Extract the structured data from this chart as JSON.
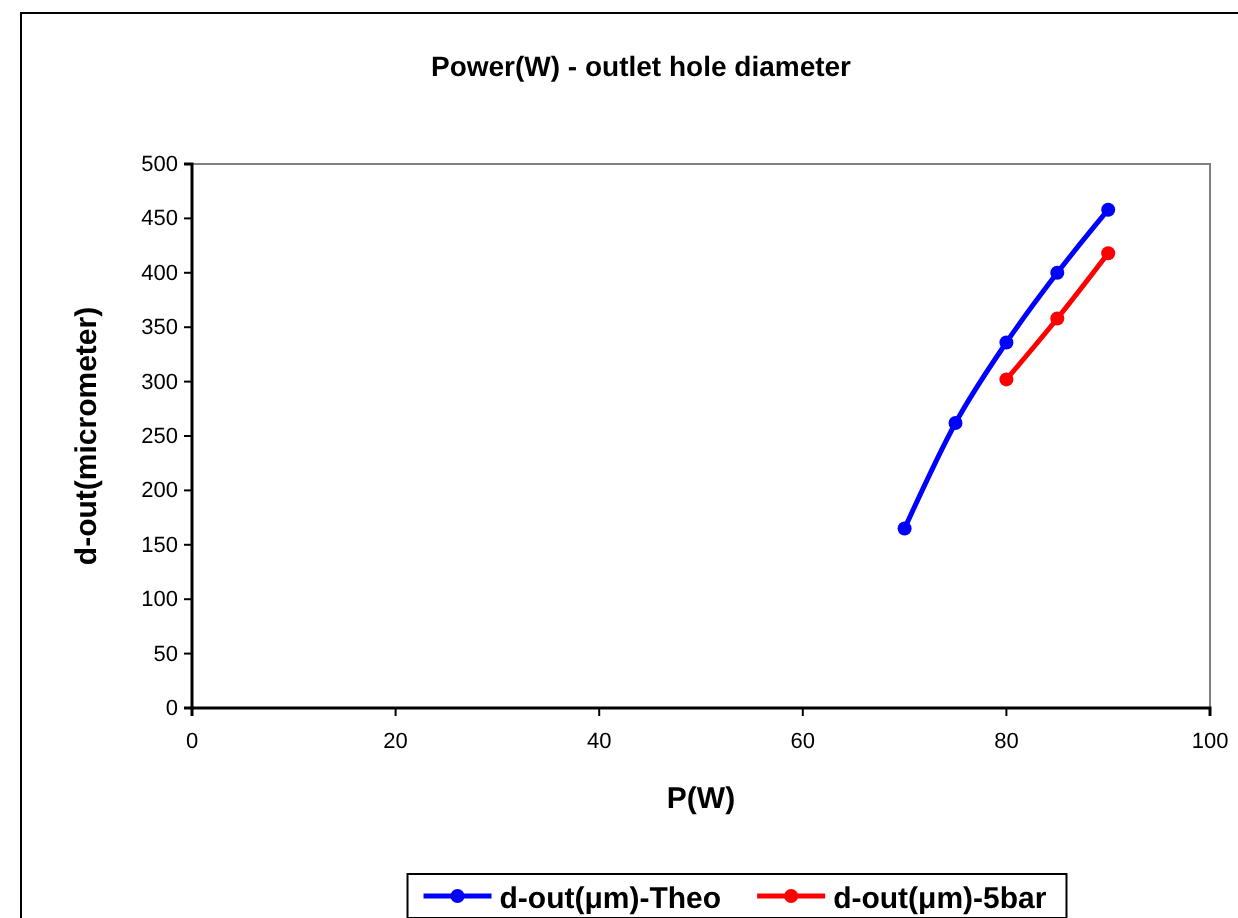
{
  "chart_data": {
    "type": "line",
    "title": "Power(W) - outlet hole diameter",
    "xlabel": "P(W)",
    "ylabel": "d-out(micrometer)",
    "xlim": [
      0,
      100
    ],
    "xticks": [
      0,
      20,
      40,
      60,
      80,
      100
    ],
    "ylim": [
      0,
      500
    ],
    "yticks": [
      0,
      50,
      100,
      150,
      200,
      250,
      300,
      350,
      400,
      450,
      500
    ],
    "grid": false,
    "legend": "bottom",
    "marker": "circle",
    "line_style": "solid",
    "series": [
      {
        "name": "d-out(μm)-Theo",
        "color": "#0000ff",
        "x": [
          70,
          75,
          80,
          85,
          90
        ],
        "values": [
          165,
          262,
          336,
          400,
          458
        ]
      },
      {
        "name": "d-out(μm)-5bar",
        "color": "#ff0000",
        "x": [
          80,
          85,
          90
        ],
        "values": [
          302,
          358,
          418
        ]
      }
    ]
  }
}
